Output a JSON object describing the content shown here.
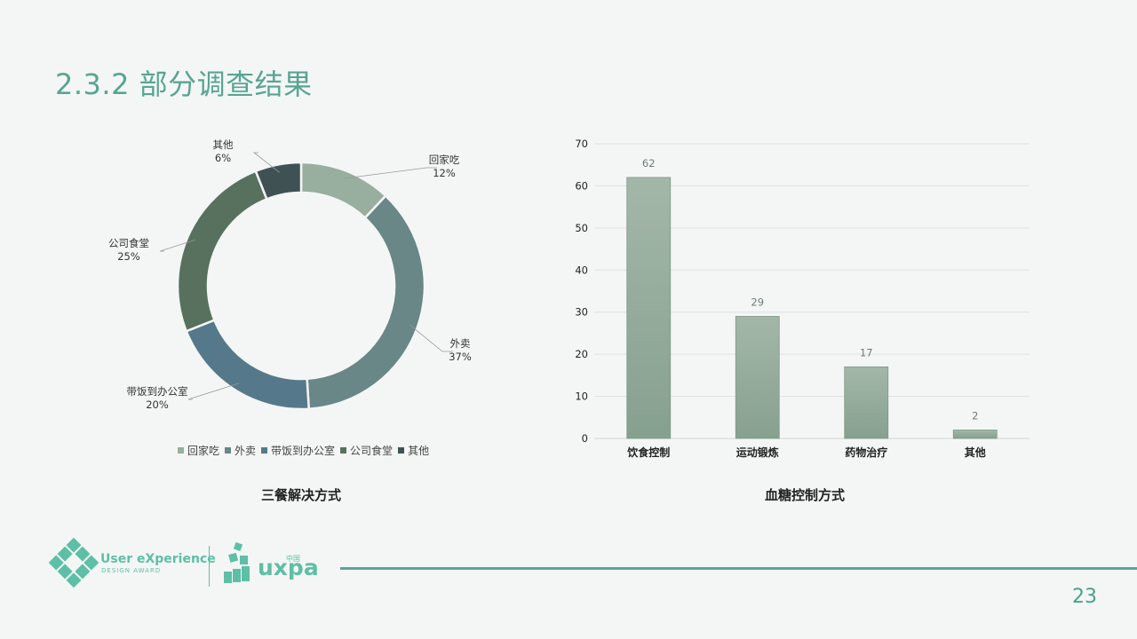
{
  "page": {
    "title": "2.3.2 部分调查结果",
    "page_number": "23"
  },
  "logos": {
    "ux_award_title": "User eXperience",
    "ux_award_sub": "DESIGN   AWARD",
    "uxpa_text": "uxpa",
    "uxpa_cn": "中国"
  },
  "colors": {
    "accent": "#58a593",
    "pie": [
      "#98ae9e",
      "#688786",
      "#55798a",
      "#58715f",
      "#3f5153"
    ],
    "bar": "#93ab99"
  },
  "chart_data": [
    {
      "type": "pie",
      "variant": "donut",
      "title": "三餐解决方式",
      "categories": [
        "回家吃",
        "外卖",
        "带饭到办公室",
        "公司食堂",
        "其他"
      ],
      "values": [
        12,
        37,
        20,
        25,
        6
      ],
      "labels": [
        "12%",
        "37%",
        "20%",
        "25%",
        "6%"
      ],
      "legend_position": "bottom"
    },
    {
      "type": "bar",
      "title": "血糖控制方式",
      "categories": [
        "饮食控制",
        "运动锻炼",
        "药物治疗",
        "其他"
      ],
      "values": [
        62,
        29,
        17,
        2
      ],
      "xlabel": "",
      "ylabel": "",
      "ylim": [
        0,
        70
      ],
      "yticks": [
        0,
        10,
        20,
        30,
        40,
        50,
        60,
        70
      ],
      "grid": true,
      "data_labels": true
    }
  ]
}
